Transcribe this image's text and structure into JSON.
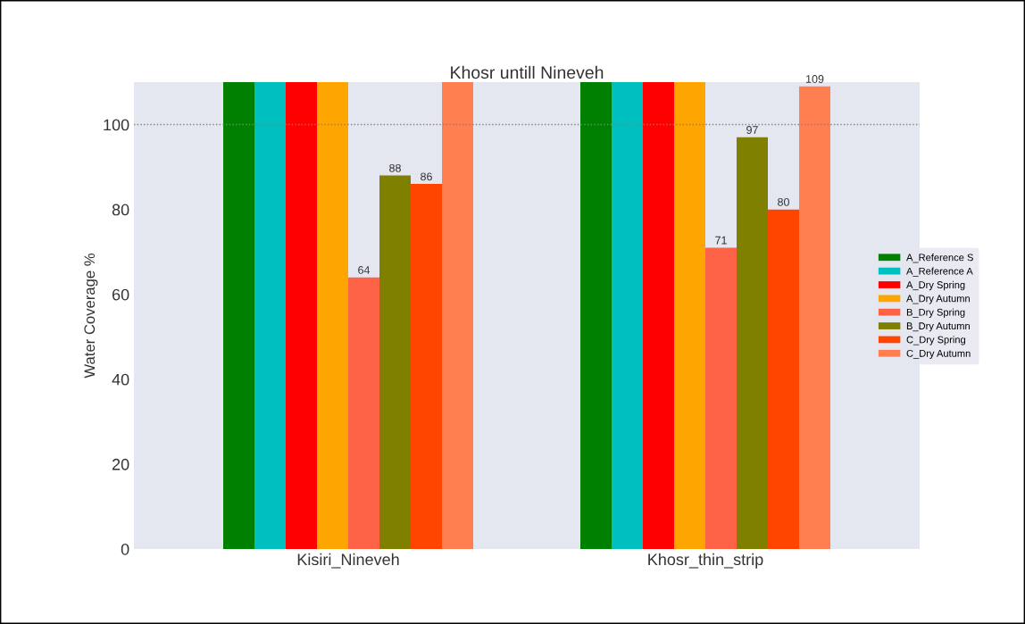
{
  "chart_data": {
    "type": "bar",
    "title": "Khosr untill Nineveh",
    "ylabel": "Water Coverage %",
    "categories": [
      "Kisiri_Nineveh",
      "Khosr_thin_strip"
    ],
    "series": [
      {
        "name": "A_Reference S",
        "color": "#008000",
        "values": [
          110,
          110
        ]
      },
      {
        "name": "A_Reference A",
        "color": "#00bfbf",
        "values": [
          110,
          110
        ]
      },
      {
        "name": "A_Dry Spring",
        "color": "#ff0000",
        "values": [
          110,
          110
        ]
      },
      {
        "name": "A_Dry Autumn",
        "color": "#ffa500",
        "values": [
          110,
          110
        ]
      },
      {
        "name": "B_Dry Spring",
        "color": "#ff6347",
        "values": [
          64,
          71
        ],
        "value_labels": [
          "64",
          "71"
        ]
      },
      {
        "name": "B_Dry Autumn",
        "color": "#808000",
        "values": [
          88,
          97
        ],
        "value_labels": [
          "88",
          "97"
        ]
      },
      {
        "name": "C_Dry Spring",
        "color": "#ff4500",
        "values": [
          86,
          80
        ],
        "value_labels": [
          "86",
          "80"
        ]
      },
      {
        "name": "C_Dry Autumn",
        "color": "#ff7f50",
        "values": [
          110,
          109
        ],
        "value_labels": [
          null,
          "109"
        ]
      }
    ],
    "ylim": [
      0,
      110
    ],
    "yticks": [
      0,
      20,
      40,
      60,
      80,
      100
    ],
    "ref_lines": [
      {
        "axis": "y",
        "value": 100,
        "color": "#808080",
        "line_style": "dotted"
      }
    ],
    "legend": "right",
    "grid": false
  }
}
